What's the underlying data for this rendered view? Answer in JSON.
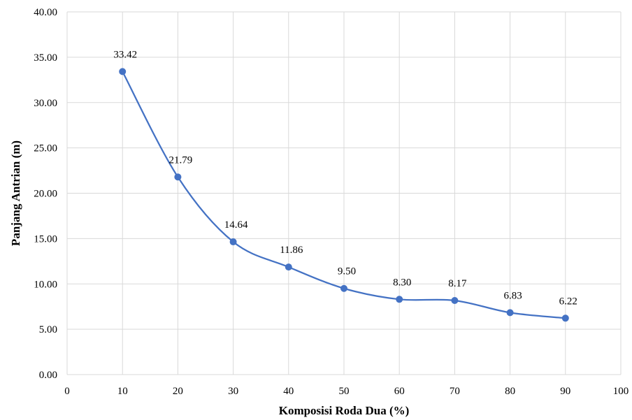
{
  "chart_data": {
    "type": "scatter",
    "title": "",
    "xlabel": "Komposisi Roda Dua (%)",
    "ylabel": "Panjang Antrian (m)",
    "xlim": [
      0,
      100
    ],
    "ylim": [
      0,
      40
    ],
    "x_ticks": [
      "0",
      "10",
      "20",
      "30",
      "40",
      "50",
      "60",
      "70",
      "80",
      "90",
      "100"
    ],
    "y_ticks": [
      "0.00",
      "5.00",
      "10.00",
      "15.00",
      "20.00",
      "25.00",
      "30.00",
      "35.00",
      "40.00"
    ],
    "grid": true,
    "smooth_line": true,
    "series_color": "#4472C4",
    "series": [
      {
        "x": [
          10,
          20,
          30,
          40,
          50,
          60,
          70,
          80,
          90
        ],
        "values": [
          33.42,
          21.79,
          14.64,
          11.86,
          9.5,
          8.3,
          8.17,
          6.83,
          6.22
        ],
        "labels": [
          "33.42",
          "21.79",
          "14.64",
          "11.86",
          "9.50",
          "8.30",
          "8.17",
          "6.83",
          "6.22"
        ]
      }
    ]
  }
}
